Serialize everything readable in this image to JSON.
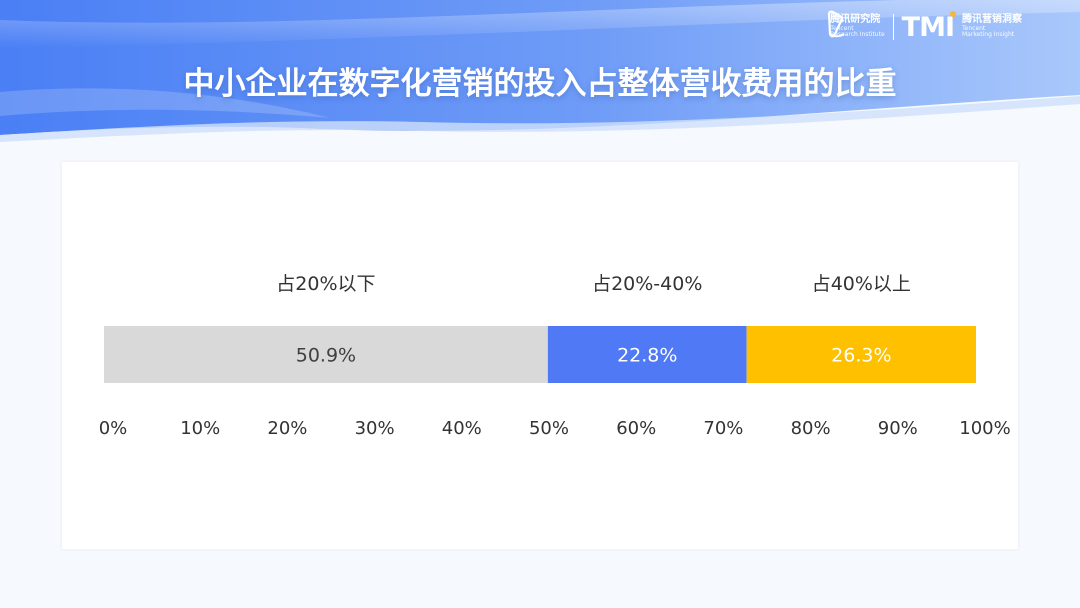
{
  "header": {
    "title": "中小企业在数字化营销的投入占整体营收费用的比重",
    "logo_left_cn": "腾讯研究院",
    "logo_left_en_1": "Tencent",
    "logo_left_en_2": "Research Institute",
    "logo_right_mark": "TMI",
    "logo_right_cn": "腾讯营销洞察",
    "logo_right_en_1": "Tencent",
    "logo_right_en_2": "Marketing Insight"
  },
  "colors": {
    "header_blue": "#5b8ef7",
    "seg_gray": "#d9d9d9",
    "seg_blue": "#4f79f5",
    "seg_yellow": "#ffc000"
  },
  "chart_data": {
    "type": "bar",
    "orientation": "horizontal-stacked-100",
    "categories": [
      "占20%以下",
      "占20%-40%",
      "占40%以上"
    ],
    "values": [
      50.9,
      22.8,
      26.3
    ],
    "value_labels": [
      "50.9%",
      "22.8%",
      "26.3%"
    ],
    "colors": [
      "#d9d9d9",
      "#4f79f5",
      "#ffc000"
    ],
    "xlim": [
      0,
      100
    ],
    "x_ticks": [
      "0%",
      "10%",
      "20%",
      "30%",
      "40%",
      "50%",
      "60%",
      "70%",
      "80%",
      "90%",
      "100%"
    ],
    "grid": false
  }
}
